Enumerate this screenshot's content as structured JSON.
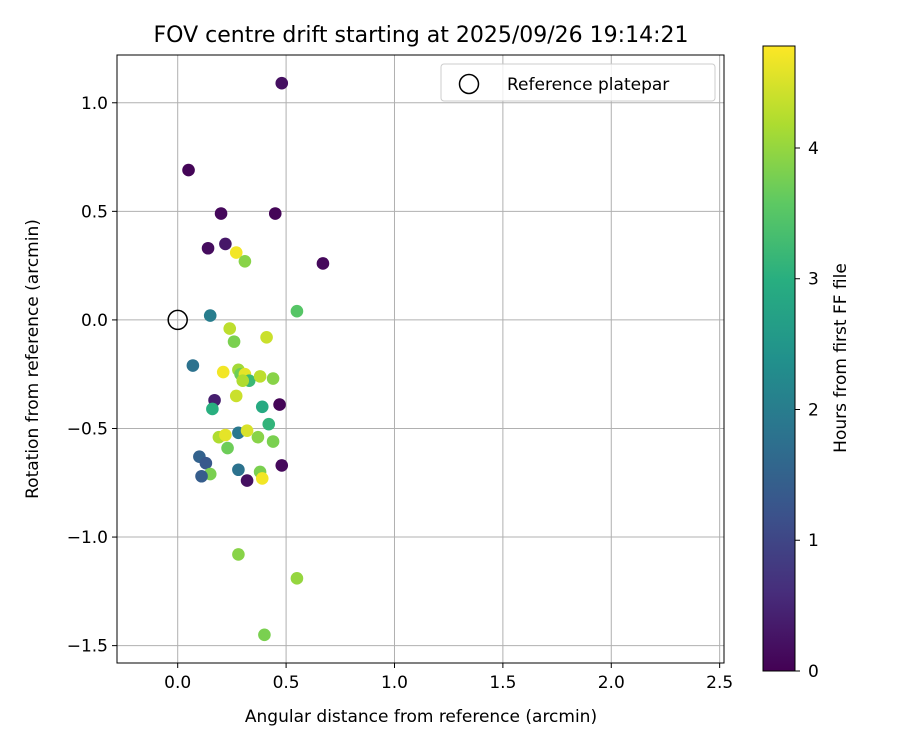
{
  "chart_data": {
    "type": "scatter",
    "title": "FOV centre drift starting at 2025/09/26 19:14:21",
    "xlabel": "Angular distance from reference (arcmin)",
    "ylabel": "Rotation from reference (arcmin)",
    "xlim": [
      -0.28,
      2.52
    ],
    "ylim": [
      -1.58,
      1.22
    ],
    "x_ticks": [
      0.0,
      0.5,
      1.0,
      1.5,
      2.0,
      2.5
    ],
    "x_tick_labels": [
      "0.0",
      "0.5",
      "1.0",
      "1.5",
      "2.0",
      "2.5"
    ],
    "y_ticks": [
      1.0,
      0.5,
      0.0,
      -0.5,
      -1.0,
      -1.5
    ],
    "y_tick_labels": [
      "1.0",
      "0.5",
      "0.0",
      "−0.5",
      "−1.0",
      "−1.5"
    ],
    "grid": true,
    "legend": {
      "position": "upper right",
      "entries": [
        "Reference platepar"
      ]
    },
    "reference_point": {
      "x": 0.0,
      "y": 0.0,
      "label": "Reference platepar"
    },
    "colorbar": {
      "label": "Hours from first FF file",
      "range": [
        0,
        4.78
      ],
      "ticks": [
        0,
        1,
        2,
        3,
        4
      ],
      "tick_labels": [
        "0",
        "1",
        "2",
        "3",
        "4"
      ],
      "colormap": "viridis"
    },
    "series": [
      {
        "name": "FOV centre",
        "points": [
          {
            "x": 0.48,
            "y": 1.09,
            "h": 0.2
          },
          {
            "x": 0.05,
            "y": 0.69,
            "h": 0.05
          },
          {
            "x": 0.2,
            "y": 0.49,
            "h": 0.1
          },
          {
            "x": 0.45,
            "y": 0.49,
            "h": 0.05
          },
          {
            "x": 0.14,
            "y": 0.33,
            "h": 0.15
          },
          {
            "x": 0.22,
            "y": 0.35,
            "h": 0.3
          },
          {
            "x": 0.27,
            "y": 0.31,
            "h": 4.7
          },
          {
            "x": 0.31,
            "y": 0.27,
            "h": 3.9
          },
          {
            "x": 0.67,
            "y": 0.26,
            "h": 0.1
          },
          {
            "x": 0.55,
            "y": 0.04,
            "h": 3.5
          },
          {
            "x": 0.15,
            "y": 0.02,
            "h": 2.0
          },
          {
            "x": 0.24,
            "y": -0.04,
            "h": 4.3
          },
          {
            "x": 0.26,
            "y": -0.1,
            "h": 3.8
          },
          {
            "x": 0.41,
            "y": -0.08,
            "h": 4.4
          },
          {
            "x": 0.07,
            "y": -0.21,
            "h": 1.8
          },
          {
            "x": 0.28,
            "y": -0.23,
            "h": 4.1
          },
          {
            "x": 0.29,
            "y": -0.25,
            "h": 3.7
          },
          {
            "x": 0.31,
            "y": -0.25,
            "h": 4.6
          },
          {
            "x": 0.33,
            "y": -0.28,
            "h": 3.2
          },
          {
            "x": 0.3,
            "y": -0.28,
            "h": 4.2
          },
          {
            "x": 0.21,
            "y": -0.24,
            "h": 4.7
          },
          {
            "x": 0.38,
            "y": -0.26,
            "h": 4.3
          },
          {
            "x": 0.44,
            "y": -0.27,
            "h": 3.9
          },
          {
            "x": 0.27,
            "y": -0.35,
            "h": 4.4
          },
          {
            "x": 0.17,
            "y": -0.37,
            "h": 0.4
          },
          {
            "x": 0.16,
            "y": -0.41,
            "h": 3.0
          },
          {
            "x": 0.39,
            "y": -0.4,
            "h": 2.9
          },
          {
            "x": 0.47,
            "y": -0.39,
            "h": 0.05
          },
          {
            "x": 0.42,
            "y": -0.48,
            "h": 3.1
          },
          {
            "x": 0.19,
            "y": -0.54,
            "h": 4.2
          },
          {
            "x": 0.22,
            "y": -0.53,
            "h": 4.6
          },
          {
            "x": 0.28,
            "y": -0.52,
            "h": 1.9
          },
          {
            "x": 0.32,
            "y": -0.51,
            "h": 4.5
          },
          {
            "x": 0.37,
            "y": -0.54,
            "h": 3.9
          },
          {
            "x": 0.44,
            "y": -0.56,
            "h": 3.8
          },
          {
            "x": 0.23,
            "y": -0.59,
            "h": 3.7
          },
          {
            "x": 0.1,
            "y": -0.63,
            "h": 1.5
          },
          {
            "x": 0.13,
            "y": -0.66,
            "h": 1.3
          },
          {
            "x": 0.48,
            "y": -0.67,
            "h": 0.1
          },
          {
            "x": 0.28,
            "y": -0.69,
            "h": 1.8
          },
          {
            "x": 0.15,
            "y": -0.71,
            "h": 3.8
          },
          {
            "x": 0.38,
            "y": -0.7,
            "h": 3.8
          },
          {
            "x": 0.11,
            "y": -0.72,
            "h": 1.4
          },
          {
            "x": 0.39,
            "y": -0.73,
            "h": 4.7
          },
          {
            "x": 0.32,
            "y": -0.74,
            "h": 0.2
          },
          {
            "x": 0.28,
            "y": -1.08,
            "h": 3.9
          },
          {
            "x": 0.55,
            "y": -1.19,
            "h": 4.0
          },
          {
            "x": 0.4,
            "y": -1.45,
            "h": 3.8
          }
        ]
      }
    ]
  }
}
